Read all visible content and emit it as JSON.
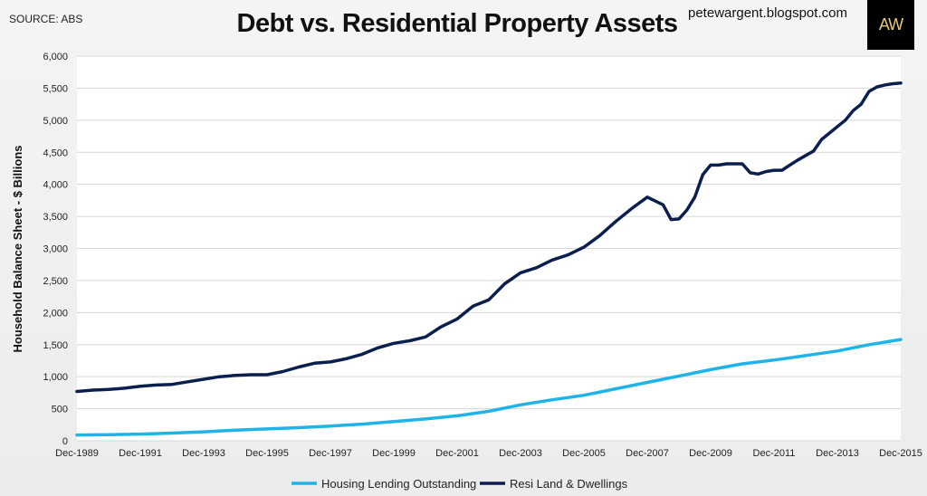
{
  "source_label": "SOURCE: ABS",
  "blog_label": "petewargent.blogspot.com",
  "logo_text": "AW",
  "colors": {
    "housing_lending": "#1fb4e8",
    "resi_land": "#0b1f4f",
    "gridline": "#d6d6d6",
    "plot_bg": "#ffffff"
  },
  "chart_data": {
    "type": "line",
    "title": "Debt vs. Residential Property Assets",
    "xlabel": "",
    "ylabel": "Household Balance Sheet - $ Billions",
    "ylim": [
      0,
      6000
    ],
    "yticks": [
      0,
      500,
      1000,
      1500,
      2000,
      2500,
      3000,
      3500,
      4000,
      4500,
      5000,
      5500,
      6000
    ],
    "ytick_labels": [
      "0",
      "500",
      "1,000",
      "1,500",
      "2,000",
      "2,500",
      "3,000",
      "3,500",
      "4,000",
      "4,500",
      "5,000",
      "5,500",
      "6,000"
    ],
    "xlim": [
      1989.92,
      2015.92
    ],
    "xticks": [
      1989.92,
      1991.92,
      1993.92,
      1995.92,
      1997.92,
      1999.92,
      2001.92,
      2003.92,
      2005.92,
      2007.92,
      2009.92,
      2011.92,
      2013.92,
      2015.92
    ],
    "xtick_labels": [
      "Dec-1989",
      "Dec-1991",
      "Dec-1993",
      "Dec-1995",
      "Dec-1997",
      "Dec-1999",
      "Dec-2001",
      "Dec-2003",
      "Dec-2005",
      "Dec-2007",
      "Dec-2009",
      "Dec-2011",
      "Dec-2013",
      "Dec-2015"
    ],
    "grid": "horizontal",
    "legend_position": "bottom",
    "series": [
      {
        "name": "Housing Lending Outstanding",
        "x": [
          1989.92,
          1990.92,
          1991.92,
          1992.92,
          1993.92,
          1994.92,
          1995.92,
          1996.92,
          1997.92,
          1998.92,
          1999.92,
          2000.92,
          2001.92,
          2002.92,
          2003.92,
          2004.92,
          2005.92,
          2006.92,
          2007.92,
          2008.92,
          2009.92,
          2010.92,
          2011.92,
          2012.92,
          2013.92,
          2014.92,
          2015.92
        ],
        "values": [
          90,
          95,
          105,
          120,
          140,
          165,
          185,
          205,
          230,
          260,
          300,
          340,
          390,
          460,
          560,
          640,
          710,
          810,
          910,
          1010,
          1110,
          1200,
          1260,
          1330,
          1400,
          1500,
          1580
        ]
      },
      {
        "name": "Resi Land & Dwellings",
        "x": [
          1989.92,
          1990.42,
          1990.92,
          1991.42,
          1991.92,
          1992.42,
          1992.92,
          1993.42,
          1993.92,
          1994.42,
          1994.92,
          1995.42,
          1995.92,
          1996.42,
          1996.92,
          1997.42,
          1997.92,
          1998.42,
          1998.92,
          1999.42,
          1999.92,
          2000.42,
          2000.92,
          2001.42,
          2001.92,
          2002.42,
          2002.92,
          2003.42,
          2003.92,
          2004.42,
          2004.92,
          2005.42,
          2005.92,
          2006.42,
          2006.92,
          2007.42,
          2007.92,
          2008.42,
          2008.67,
          2008.92,
          2009.17,
          2009.42,
          2009.67,
          2009.92,
          2010.17,
          2010.42,
          2010.67,
          2010.92,
          2011.17,
          2011.42,
          2011.67,
          2011.92,
          2012.17,
          2012.42,
          2012.67,
          2012.92,
          2013.17,
          2013.42,
          2013.67,
          2013.92,
          2014.17,
          2014.42,
          2014.67,
          2014.92,
          2015.17,
          2015.42,
          2015.67,
          2015.92
        ],
        "values": [
          770,
          790,
          800,
          820,
          850,
          870,
          880,
          920,
          960,
          1000,
          1020,
          1030,
          1030,
          1080,
          1150,
          1210,
          1230,
          1280,
          1350,
          1450,
          1520,
          1560,
          1620,
          1780,
          1900,
          2100,
          2200,
          2450,
          2620,
          2700,
          2820,
          2900,
          3020,
          3200,
          3420,
          3620,
          3800,
          3680,
          3450,
          3460,
          3600,
          3800,
          4150,
          4300,
          4300,
          4320,
          4320,
          4320,
          4180,
          4160,
          4200,
          4220,
          4220,
          4300,
          4380,
          4450,
          4520,
          4700,
          4800,
          4900,
          5000,
          5150,
          5250,
          5450,
          5520,
          5550,
          5570,
          5580
        ]
      }
    ]
  }
}
